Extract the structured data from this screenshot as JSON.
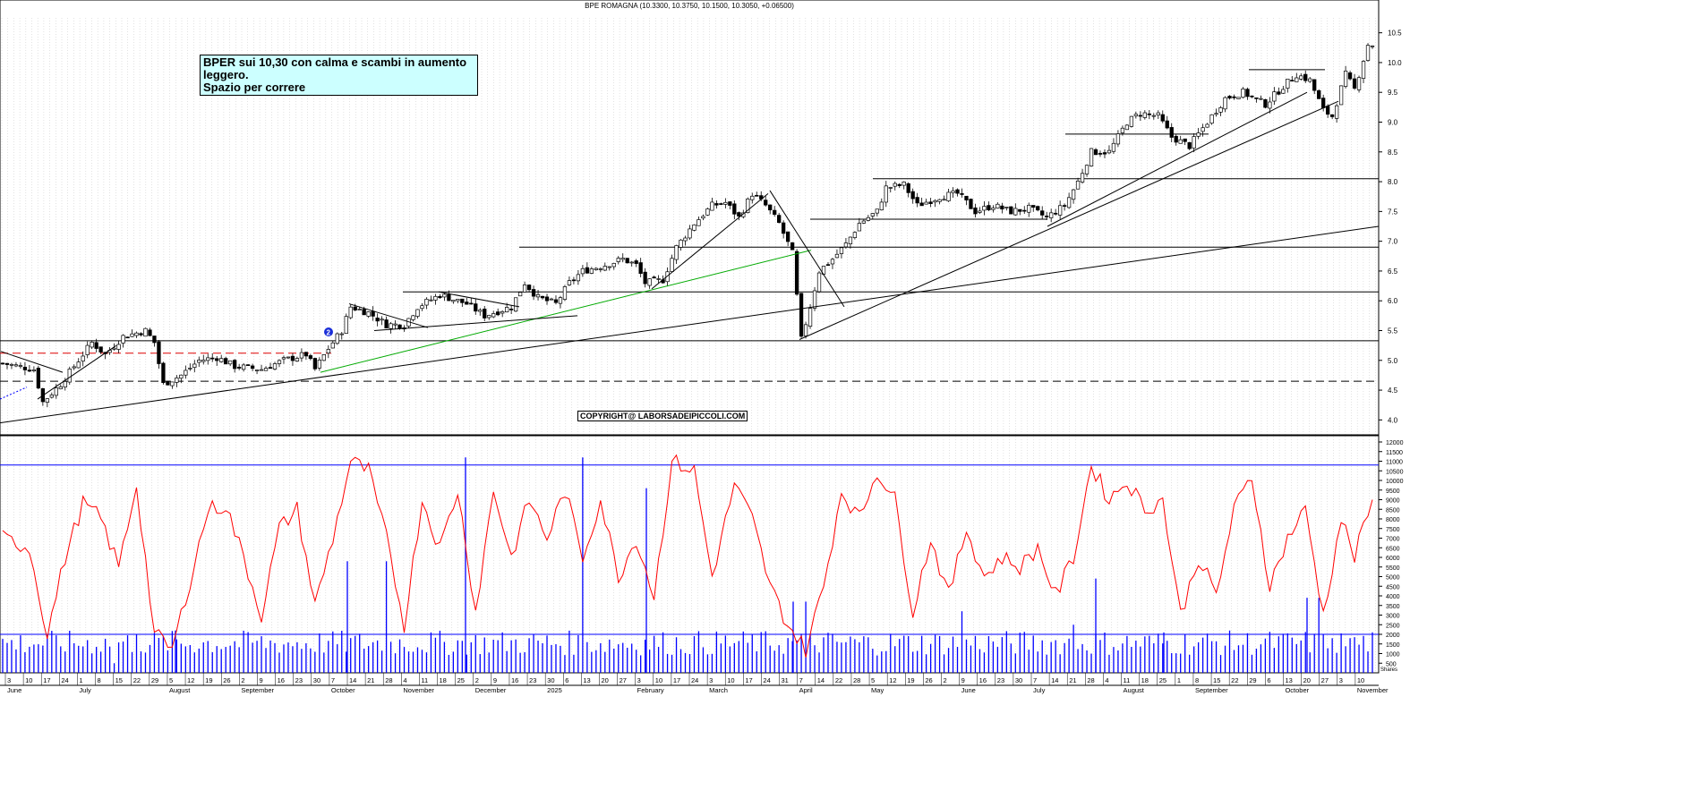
{
  "chart_data": [
    {
      "type": "candlestick",
      "title": "BPE ROMAGNA (10.3300, 10.3750, 10.1500, 10.3050, +0.06500)",
      "annotation_lines": [
        "BPER sui 10,30 con calma e scambi in aumento leggero.",
        "Spazio per correre"
      ],
      "copyright": "COPYRIGHT@ LABORSADEIPICCOLI.COM",
      "ylim": [
        3.75,
        10.75
      ],
      "y_ticks": [
        "4.0",
        "4.5",
        "5.0",
        "5.5",
        "6.0",
        "6.5",
        "7.0",
        "7.5",
        "8.0",
        "8.5",
        "9.0",
        "9.5",
        "10.0",
        "10.5"
      ],
      "grid": true,
      "waypoints": [
        [
          0,
          4.95
        ],
        [
          7,
          4.85
        ],
        [
          9,
          4.3
        ],
        [
          13,
          4.6
        ],
        [
          17,
          5.0
        ],
        [
          20,
          5.3
        ],
        [
          23,
          5.1
        ],
        [
          27,
          5.4
        ],
        [
          32,
          5.5
        ],
        [
          34,
          5.3
        ],
        [
          36,
          4.6
        ],
        [
          40,
          4.75
        ],
        [
          44,
          5.0
        ],
        [
          48,
          5.05
        ],
        [
          52,
          4.9
        ],
        [
          58,
          4.85
        ],
        [
          63,
          5.0
        ],
        [
          68,
          5.1
        ],
        [
          70,
          4.85
        ],
        [
          73,
          5.2
        ],
        [
          76,
          5.5
        ],
        [
          78,
          5.9
        ],
        [
          82,
          5.8
        ],
        [
          86,
          5.6
        ],
        [
          90,
          5.6
        ],
        [
          93,
          5.9
        ],
        [
          98,
          6.1
        ],
        [
          104,
          5.95
        ],
        [
          108,
          5.75
        ],
        [
          114,
          5.9
        ],
        [
          117,
          6.3
        ],
        [
          120,
          6.05
        ],
        [
          124,
          5.95
        ],
        [
          127,
          6.3
        ],
        [
          130,
          6.5
        ],
        [
          135,
          6.6
        ],
        [
          139,
          6.7
        ],
        [
          142,
          6.6
        ],
        [
          144,
          6.3
        ],
        [
          148,
          6.35
        ],
        [
          151,
          6.9
        ],
        [
          155,
          7.3
        ],
        [
          159,
          7.6
        ],
        [
          162,
          7.65
        ],
        [
          165,
          7.4
        ],
        [
          168,
          7.8
        ],
        [
          171,
          7.6
        ],
        [
          174,
          7.3
        ],
        [
          177,
          6.8
        ],
        [
          179,
          5.35
        ],
        [
          181,
          5.9
        ],
        [
          183,
          6.5
        ],
        [
          186,
          6.7
        ],
        [
          189,
          6.95
        ],
        [
          192,
          7.3
        ],
        [
          196,
          7.5
        ],
        [
          198,
          7.9
        ],
        [
          202,
          7.95
        ],
        [
          205,
          7.6
        ],
        [
          210,
          7.75
        ],
        [
          214,
          7.8
        ],
        [
          218,
          7.5
        ],
        [
          222,
          7.6
        ],
        [
          226,
          7.5
        ],
        [
          230,
          7.55
        ],
        [
          234,
          7.4
        ],
        [
          238,
          7.6
        ],
        [
          241,
          8.0
        ],
        [
          244,
          8.5
        ],
        [
          248,
          8.5
        ],
        [
          252,
          9.0
        ],
        [
          255,
          9.15
        ],
        [
          259,
          9.1
        ],
        [
          262,
          8.75
        ],
        [
          266,
          8.6
        ],
        [
          270,
          9.0
        ],
        [
          274,
          9.4
        ],
        [
          278,
          9.5
        ],
        [
          283,
          9.3
        ],
        [
          287,
          9.6
        ],
        [
          290,
          9.8
        ],
        [
          293,
          9.7
        ],
        [
          296,
          9.2
        ],
        [
          298,
          9.1
        ],
        [
          301,
          9.8
        ],
        [
          303,
          9.55
        ],
        [
          306,
          10.3
        ]
      ],
      "trend_lines": [
        {
          "from": [
            0,
            3.95
          ],
          "to": [
            1540,
            7.25
          ],
          "color": "#000000"
        },
        {
          "from": [
            358,
            4.8
          ],
          "to": [
            906,
            6.85
          ],
          "color": "#00aa00"
        },
        {
          "from": [
            893,
            5.35
          ],
          "to": [
            1495,
            9.35
          ],
          "color": "#000000"
        },
        {
          "from": [
            1170,
            7.25
          ],
          "to": [
            1460,
            9.5
          ],
          "color": "#000000"
        },
        {
          "from": [
            860,
            7.85
          ],
          "to": [
            943,
            5.9
          ],
          "color": "#000000"
        },
        {
          "from": [
            1,
            5.15
          ],
          "to": [
            70,
            4.8
          ],
          "color": "#000000"
        },
        {
          "from": [
            42,
            4.35
          ],
          "to": [
            130,
            5.25
          ],
          "color": "#000000"
        },
        {
          "from": [
            390,
            5.95
          ],
          "to": [
            478,
            5.55
          ],
          "color": "#000000"
        },
        {
          "from": [
            418,
            5.5
          ],
          "to": [
            645,
            5.75
          ],
          "color": "#000000"
        },
        {
          "from": [
            490,
            6.15
          ],
          "to": [
            580,
            5.9
          ],
          "color": "#000000"
        },
        {
          "from": [
            728,
            6.2
          ],
          "to": [
            858,
            7.8
          ],
          "color": "#000000"
        }
      ],
      "horizontal_lines": [
        {
          "y": 4.65,
          "x0": 0,
          "x1": 1540,
          "style": "dashed",
          "color": "#000000"
        },
        {
          "y": 5.12,
          "x0": 0,
          "x1": 370,
          "style": "dashed",
          "color": "#dd0000"
        },
        {
          "y": 5.33,
          "x0": 0,
          "x1": 1540,
          "style": "solid",
          "color": "#000000"
        },
        {
          "y": 6.15,
          "x0": 450,
          "x1": 1540,
          "style": "solid",
          "color": "#000000"
        },
        {
          "y": 6.9,
          "x0": 580,
          "x1": 1540,
          "style": "solid",
          "color": "#000000"
        },
        {
          "y": 7.37,
          "x0": 905,
          "x1": 1170,
          "style": "solid",
          "color": "#000000"
        },
        {
          "y": 8.05,
          "x0": 975,
          "x1": 1540,
          "style": "solid",
          "color": "#000000"
        },
        {
          "y": 8.8,
          "x0": 1190,
          "x1": 1350,
          "style": "solid",
          "color": "#000000"
        },
        {
          "y": 9.88,
          "x0": 1395,
          "x1": 1480,
          "style": "solid",
          "color": "#000000"
        }
      ],
      "marker_label": "2"
    },
    {
      "type": "bar+line",
      "ylim": [
        0,
        12000
      ],
      "y_ticks": [
        "500",
        "1000",
        "1500",
        "2000",
        "2500",
        "3000",
        "3500",
        "4000",
        "4500",
        "5000",
        "5500",
        "6000",
        "6500",
        "7000",
        "7500",
        "8000",
        "8500",
        "9000",
        "9500",
        "10000",
        "10500",
        "11000",
        "11500",
        "12000"
      ],
      "level_lines": [
        10800,
        2000
      ],
      "line_color": "#ff0000",
      "bar_color": "#0000ff",
      "line_waypoints": [
        [
          0,
          7000
        ],
        [
          6,
          6500
        ],
        [
          10,
          2000
        ],
        [
          14,
          6000
        ],
        [
          18,
          8800
        ],
        [
          22,
          8000
        ],
        [
          26,
          5500
        ],
        [
          30,
          9800
        ],
        [
          34,
          2000
        ],
        [
          38,
          1200
        ],
        [
          42,
          4800
        ],
        [
          46,
          8500
        ],
        [
          50,
          8700
        ],
        [
          54,
          6000
        ],
        [
          58,
          3000
        ],
        [
          62,
          7500
        ],
        [
          66,
          8500
        ],
        [
          70,
          3500
        ],
        [
          74,
          7000
        ],
        [
          78,
          11000
        ],
        [
          82,
          10500
        ],
        [
          86,
          7000
        ],
        [
          90,
          2500
        ],
        [
          94,
          9000
        ],
        [
          98,
          6500
        ],
        [
          102,
          9500
        ],
        [
          106,
          3200
        ],
        [
          110,
          9500
        ],
        [
          114,
          6000
        ],
        [
          118,
          9000
        ],
        [
          122,
          7000
        ],
        [
          126,
          9500
        ],
        [
          130,
          6000
        ],
        [
          134,
          9000
        ],
        [
          138,
          5000
        ],
        [
          142,
          7000
        ],
        [
          146,
          4000
        ],
        [
          150,
          11000
        ],
        [
          155,
          10500
        ],
        [
          159,
          5000
        ],
        [
          164,
          9800
        ],
        [
          168,
          8000
        ],
        [
          172,
          4500
        ],
        [
          176,
          2500
        ],
        [
          180,
          1200
        ],
        [
          184,
          4500
        ],
        [
          188,
          9500
        ],
        [
          192,
          8000
        ],
        [
          196,
          10500
        ],
        [
          200,
          9000
        ],
        [
          204,
          3200
        ],
        [
          208,
          7000
        ],
        [
          212,
          4000
        ],
        [
          216,
          7500
        ],
        [
          220,
          5000
        ],
        [
          224,
          6000
        ],
        [
          228,
          5500
        ],
        [
          232,
          6500
        ],
        [
          236,
          4000
        ],
        [
          240,
          6000
        ],
        [
          244,
          10800
        ],
        [
          248,
          9000
        ],
        [
          252,
          10000
        ],
        [
          256,
          8500
        ],
        [
          260,
          9000
        ],
        [
          264,
          3000
        ],
        [
          268,
          6000
        ],
        [
          272,
          4000
        ],
        [
          276,
          8500
        ],
        [
          280,
          10200
        ],
        [
          284,
          4500
        ],
        [
          288,
          7000
        ],
        [
          292,
          8500
        ],
        [
          296,
          3000
        ],
        [
          300,
          8000
        ],
        [
          303,
          6000
        ],
        [
          307,
          9000
        ]
      ],
      "bar_spikes": [
        [
          25,
          500
        ],
        [
          30,
          2000
        ],
        [
          86,
          5800
        ],
        [
          130,
          11200
        ],
        [
          180,
          3700
        ],
        [
          215,
          3200
        ],
        [
          240,
          2500
        ],
        [
          295,
          3900
        ],
        [
          298,
          1800
        ],
        [
          302,
          1800
        ],
        [
          318,
          3800
        ],
        [
          329,
          2200
        ]
      ]
    }
  ],
  "x_axis": {
    "date_labels": [
      "3",
      "10",
      "17",
      "24",
      "1",
      "8",
      "15",
      "22",
      "29",
      "5",
      "12",
      "19",
      "26",
      "2",
      "9",
      "16",
      "23",
      "30",
      "7",
      "14",
      "21",
      "28",
      "4",
      "11",
      "18",
      "25",
      "2",
      "9",
      "16",
      "23",
      "30",
      "6",
      "13",
      "20",
      "27",
      "3",
      "10",
      "17",
      "24",
      "3",
      "10",
      "17",
      "24",
      "31",
      "7",
      "14",
      "22",
      "28",
      "5",
      "12",
      "19",
      "26",
      "2",
      "9",
      "16",
      "23",
      "30",
      "7",
      "14",
      "21",
      "28",
      "4",
      "11",
      "18",
      "25",
      "1",
      "8",
      "15",
      "22",
      "29",
      "6",
      "13",
      "20",
      "27",
      "3",
      "10"
    ],
    "month_labels": [
      "June",
      "July",
      "August",
      "September",
      "October",
      "November",
      "December",
      "2025",
      "February",
      "March",
      "April",
      "May",
      "June",
      "July",
      "August",
      "September",
      "October",
      "November"
    ],
    "month_positions": [
      0,
      4,
      9,
      13,
      18,
      22,
      26,
      30,
      35,
      39,
      44,
      48,
      53,
      57,
      62,
      66,
      71,
      75
    ]
  },
  "legend_small": "Shares"
}
